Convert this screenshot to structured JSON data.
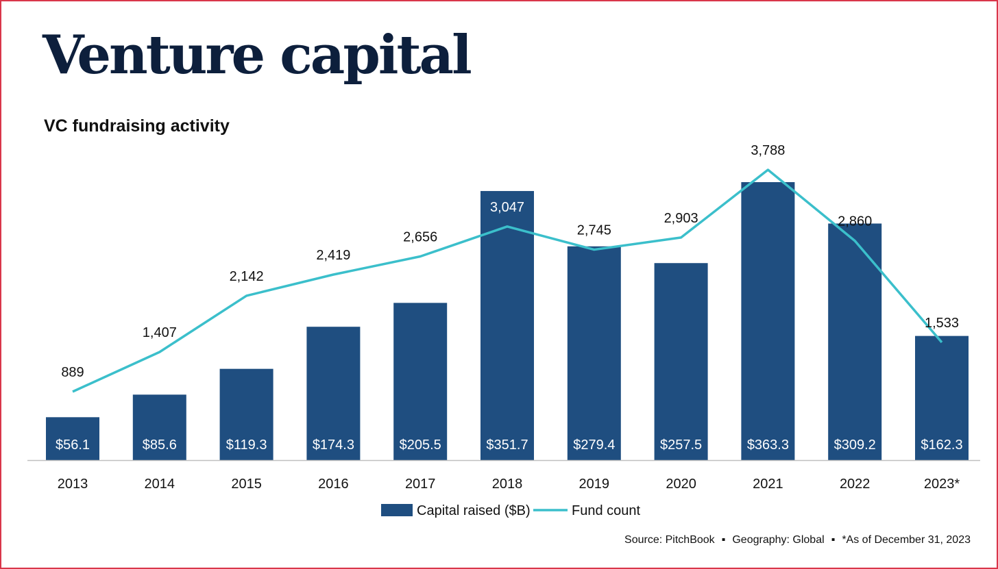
{
  "header": {
    "title": "Venture capital",
    "subtitle": "VC fundraising activity"
  },
  "colors": {
    "bar": "#1f4e80",
    "line": "#3bbfcb",
    "title": "#0d1f3c",
    "border": "#d9364a"
  },
  "chart_data": {
    "type": "bar",
    "categories": [
      "2013",
      "2014",
      "2015",
      "2016",
      "2017",
      "2018",
      "2019",
      "2020",
      "2021",
      "2022",
      "2023*"
    ],
    "series": [
      {
        "name": "Capital raised ($B)",
        "type": "bar",
        "values": [
          56.1,
          85.6,
          119.3,
          174.3,
          205.5,
          351.7,
          279.4,
          257.5,
          363.3,
          309.2,
          162.3
        ],
        "labels": [
          "$56.1",
          "$85.6",
          "$119.3",
          "$174.3",
          "$205.5",
          "$351.7",
          "$279.4",
          "$257.5",
          "$363.3",
          "$309.2",
          "$162.3"
        ]
      },
      {
        "name": "Fund count",
        "type": "line",
        "values": [
          889,
          1407,
          2142,
          2419,
          2656,
          3047,
          2745,
          2903,
          3788,
          2860,
          1533
        ],
        "labels": [
          "889",
          "1,407",
          "2,142",
          "2,419",
          "2,656",
          "3,047",
          "2,745",
          "2,903",
          "3,788",
          "2,860",
          "1,533"
        ]
      }
    ],
    "legend_position": "bottom-center",
    "grid": false
  },
  "footer": {
    "source": "Source: PitchBook",
    "geography": "Geography: Global",
    "note": "*As of December 31, 2023",
    "separator": "▪"
  }
}
